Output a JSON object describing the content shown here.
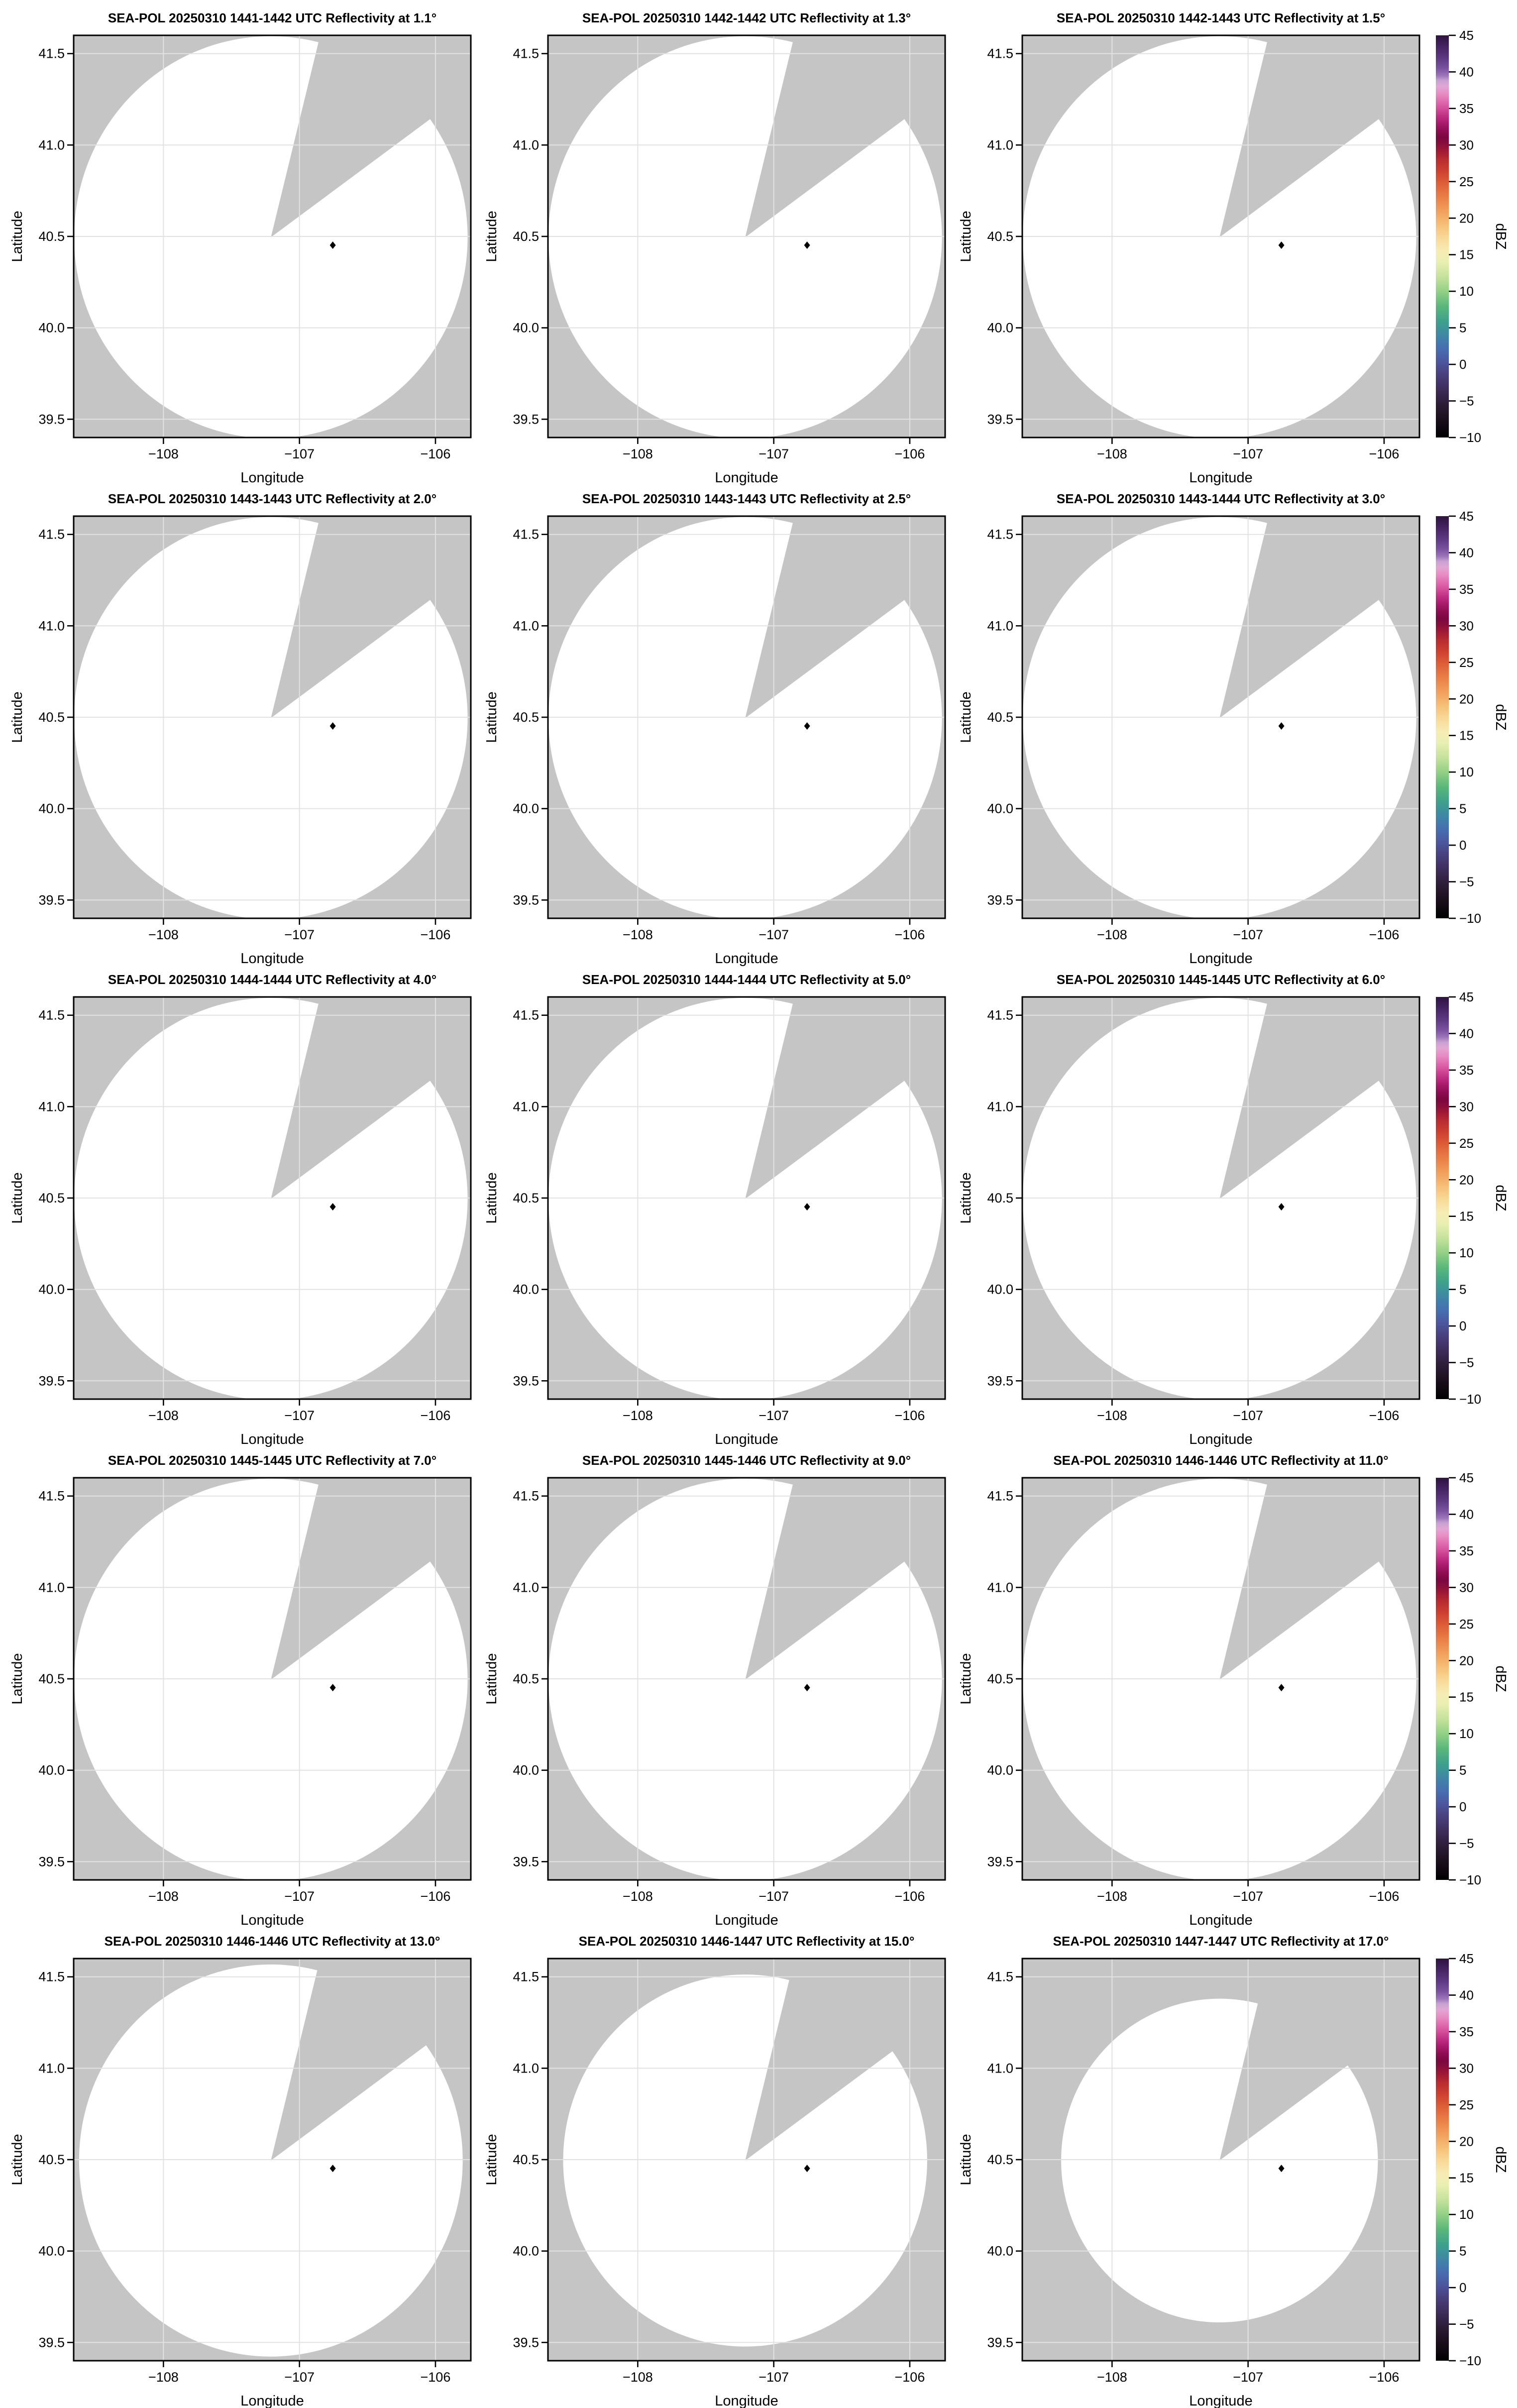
{
  "figure": {
    "kind": "radar-ppi-small-multiples",
    "rows": 5,
    "cols": 3,
    "background": "#ffffff"
  },
  "style": {
    "map_background": "#c5c5c5",
    "coverage_fill": "#ffffff",
    "grid_color": "#e2e2e2",
    "spine_color": "#000000",
    "tick_color": "#000000",
    "text_color": "#000000",
    "marker_color": "#000000"
  },
  "axes": {
    "xlabel": "Longitude",
    "ylabel": "Latitude",
    "xlim": [
      -108.66,
      -105.74
    ],
    "ylim": [
      39.4,
      41.6
    ],
    "xticks": [
      -108,
      -107,
      -106
    ],
    "xtick_labels": [
      "−108",
      "−107",
      "−106"
    ],
    "yticks": [
      41.5,
      41.0,
      40.5,
      40.0,
      39.5
    ],
    "ytick_labels": [
      "41.5",
      "41.0",
      "40.5",
      "40.0",
      "39.5"
    ],
    "grid": true
  },
  "radar": {
    "name": "SEA-POL",
    "lon": -107.21,
    "lat": 40.495,
    "max_range_deg_lat": 1.1,
    "blocked_sector_azimuth_deg": [
      14,
      54
    ]
  },
  "site_marker": {
    "shape": "diamond",
    "lon": -106.755,
    "lat": 40.452
  },
  "colorbar": {
    "label": "dBZ",
    "min": -10,
    "max": 45,
    "ticks": [
      45,
      40,
      35,
      30,
      25,
      20,
      15,
      10,
      5,
      0,
      -5,
      -10
    ],
    "tick_labels": [
      "45",
      "40",
      "35",
      "30",
      "25",
      "20",
      "15",
      "10",
      "5",
      "0",
      "−5",
      "−10"
    ],
    "stops": [
      {
        "v": 45,
        "c": "#2e1340"
      },
      {
        "v": 43.5,
        "c": "#452361"
      },
      {
        "v": 42,
        "c": "#5b3780"
      },
      {
        "v": 40.5,
        "c": "#7a52a0"
      },
      {
        "v": 39.5,
        "c": "#9b74b8"
      },
      {
        "v": 38.8,
        "c": "#c9a2d2"
      },
      {
        "v": 38,
        "c": "#e2a6d4"
      },
      {
        "v": 37,
        "c": "#e88cc4"
      },
      {
        "v": 36,
        "c": "#e06cb0"
      },
      {
        "v": 35,
        "c": "#d44e9a"
      },
      {
        "v": 34,
        "c": "#c02f84"
      },
      {
        "v": 33,
        "c": "#a91a6c"
      },
      {
        "v": 32,
        "c": "#8f0d52"
      },
      {
        "v": 31,
        "c": "#7a0740"
      },
      {
        "v": 30,
        "c": "#8c0f3a"
      },
      {
        "v": 29,
        "c": "#a51c34"
      },
      {
        "v": 28,
        "c": "#b92c30"
      },
      {
        "v": 26.5,
        "c": "#cd402f"
      },
      {
        "v": 25,
        "c": "#dc5b36"
      },
      {
        "v": 23,
        "c": "#e97d46"
      },
      {
        "v": 21,
        "c": "#f19f5c"
      },
      {
        "v": 19,
        "c": "#f6c179"
      },
      {
        "v": 17,
        "c": "#f8dd9d"
      },
      {
        "v": 15.5,
        "c": "#f6ecb4"
      },
      {
        "v": 14,
        "c": "#e9efb2"
      },
      {
        "v": 12,
        "c": "#c5e29c"
      },
      {
        "v": 10,
        "c": "#93d086"
      },
      {
        "v": 8,
        "c": "#5bb87a"
      },
      {
        "v": 6,
        "c": "#3fa18b"
      },
      {
        "v": 5,
        "c": "#3d9598"
      },
      {
        "v": 3.5,
        "c": "#4180aa"
      },
      {
        "v": 2,
        "c": "#476cb0"
      },
      {
        "v": 0.5,
        "c": "#4c58a0"
      },
      {
        "v": -1,
        "c": "#4a4484"
      },
      {
        "v": -3,
        "c": "#403060"
      },
      {
        "v": -5,
        "c": "#311f3e"
      },
      {
        "v": -7,
        "c": "#1f1222"
      },
      {
        "v": -10,
        "c": "#000000"
      }
    ]
  },
  "chart_data": [
    {
      "panel": 1,
      "type": "radar_ppi_map",
      "title": "SEA-POL 20250310 1441-1442 UTC Reflectivity at 1.1°",
      "date": "20250310",
      "time_utc": "1441-1442",
      "elevation_deg": 1.1,
      "coverage_radius_fraction": 1.0,
      "echoes_visible": false
    },
    {
      "panel": 2,
      "type": "radar_ppi_map",
      "title": "SEA-POL 20250310 1442-1442 UTC Reflectivity at 1.3°",
      "date": "20250310",
      "time_utc": "1442-1442",
      "elevation_deg": 1.3,
      "coverage_radius_fraction": 1.0,
      "echoes_visible": false
    },
    {
      "panel": 3,
      "type": "radar_ppi_map",
      "title": "SEA-POL 20250310 1442-1443 UTC Reflectivity at 1.5°",
      "date": "20250310",
      "time_utc": "1442-1443",
      "elevation_deg": 1.5,
      "coverage_radius_fraction": 1.0,
      "echoes_visible": false
    },
    {
      "panel": 4,
      "type": "radar_ppi_map",
      "title": "SEA-POL 20250310 1443-1443 UTC Reflectivity at 2.0°",
      "date": "20250310",
      "time_utc": "1443-1443",
      "elevation_deg": 2.0,
      "coverage_radius_fraction": 1.0,
      "echoes_visible": false
    },
    {
      "panel": 5,
      "type": "radar_ppi_map",
      "title": "SEA-POL 20250310 1443-1443 UTC Reflectivity at 2.5°",
      "date": "20250310",
      "time_utc": "1443-1443",
      "elevation_deg": 2.5,
      "coverage_radius_fraction": 1.0,
      "echoes_visible": false
    },
    {
      "panel": 6,
      "type": "radar_ppi_map",
      "title": "SEA-POL 20250310 1443-1444 UTC Reflectivity at 3.0°",
      "date": "20250310",
      "time_utc": "1443-1444",
      "elevation_deg": 3.0,
      "coverage_radius_fraction": 1.0,
      "echoes_visible": false
    },
    {
      "panel": 7,
      "type": "radar_ppi_map",
      "title": "SEA-POL 20250310 1444-1444 UTC Reflectivity at 4.0°",
      "date": "20250310",
      "time_utc": "1444-1444",
      "elevation_deg": 4.0,
      "coverage_radius_fraction": 1.0,
      "echoes_visible": false
    },
    {
      "panel": 8,
      "type": "radar_ppi_map",
      "title": "SEA-POL 20250310 1444-1444 UTC Reflectivity at 5.0°",
      "date": "20250310",
      "time_utc": "1444-1444",
      "elevation_deg": 5.0,
      "coverage_radius_fraction": 1.0,
      "echoes_visible": false
    },
    {
      "panel": 9,
      "type": "radar_ppi_map",
      "title": "SEA-POL 20250310 1445-1445 UTC Reflectivity at 6.0°",
      "date": "20250310",
      "time_utc": "1445-1445",
      "elevation_deg": 6.0,
      "coverage_radius_fraction": 1.0,
      "echoes_visible": false
    },
    {
      "panel": 10,
      "type": "radar_ppi_map",
      "title": "SEA-POL 20250310 1445-1445 UTC Reflectivity at 7.0°",
      "date": "20250310",
      "time_utc": "1445-1445",
      "elevation_deg": 7.0,
      "coverage_radius_fraction": 1.0,
      "echoes_visible": false
    },
    {
      "panel": 11,
      "type": "radar_ppi_map",
      "title": "SEA-POL 20250310 1445-1446 UTC Reflectivity at 9.0°",
      "date": "20250310",
      "time_utc": "1445-1446",
      "elevation_deg": 9.0,
      "coverage_radius_fraction": 1.0,
      "echoes_visible": false
    },
    {
      "panel": 12,
      "type": "radar_ppi_map",
      "title": "SEA-POL 20250310 1446-1446 UTC Reflectivity at 11.0°",
      "date": "20250310",
      "time_utc": "1446-1446",
      "elevation_deg": 11.0,
      "coverage_radius_fraction": 1.0,
      "echoes_visible": false
    },
    {
      "panel": 13,
      "type": "radar_ppi_map",
      "title": "SEA-POL 20250310 1446-1446 UTC Reflectivity at 13.0°",
      "date": "20250310",
      "time_utc": "1446-1446",
      "elevation_deg": 13.0,
      "coverage_radius_fraction": 0.975,
      "echoes_visible": false
    },
    {
      "panel": 14,
      "type": "radar_ppi_map",
      "title": "SEA-POL 20250310 1446-1447 UTC Reflectivity at 15.0°",
      "date": "20250310",
      "time_utc": "1446-1447",
      "elevation_deg": 15.0,
      "coverage_radius_fraction": 0.925,
      "echoes_visible": false
    },
    {
      "panel": 15,
      "type": "radar_ppi_map",
      "title": "SEA-POL 20250310 1447-1447 UTC Reflectivity at 17.0°",
      "date": "20250310",
      "time_utc": "1447-1447",
      "elevation_deg": 17.0,
      "coverage_radius_fraction": 0.805,
      "echoes_visible": false
    }
  ]
}
